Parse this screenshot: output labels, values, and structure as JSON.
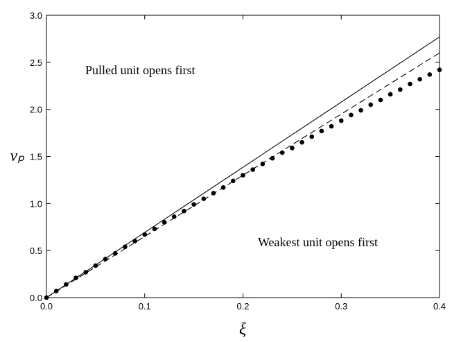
{
  "chart_data": {
    "type": "line",
    "xlabel": "ξ",
    "ylabel": "vₚ",
    "annotations": [
      "Pulled unit opens first",
      "Weakest unit opens first"
    ],
    "xlim": [
      0,
      0.4
    ],
    "xticks": [
      {
        "value": 0,
        "label": "0.0"
      },
      0.1,
      0.2,
      0.3,
      0.4
    ],
    "ylim": [
      0,
      3
    ],
    "yticks": [
      {
        "value": 0,
        "label": "0.0"
      },
      0.5,
      {
        "value": 1,
        "label": "1.0"
      },
      1.5,
      {
        "value": 2,
        "label": "2.0"
      },
      2.5,
      {
        "value": 3,
        "label": "3.0"
      }
    ],
    "series": [
      {
        "style": "solid",
        "color": "#000000",
        "x": [
          0,
          0.4
        ],
        "values": [
          0,
          2.77
        ]
      },
      {
        "style": "dashed",
        "color": "#000000",
        "x": [
          0,
          0.4
        ],
        "values": [
          0,
          2.6
        ]
      },
      {
        "style": "dots",
        "color": "#000000",
        "x": [
          0,
          0.01,
          0.02,
          0.03,
          0.04,
          0.05,
          0.06,
          0.07,
          0.08,
          0.09,
          0.1,
          0.11,
          0.12,
          0.13,
          0.14,
          0.15,
          0.16,
          0.17,
          0.18,
          0.19,
          0.2,
          0.21,
          0.22,
          0.23,
          0.24,
          0.25,
          0.26,
          0.27,
          0.28,
          0.29,
          0.3,
          0.31,
          0.32,
          0.33,
          0.34,
          0.35,
          0.36,
          0.37,
          0.38,
          0.39,
          0.4
        ],
        "values": [
          0,
          0.07,
          0.14,
          0.21,
          0.27,
          0.34,
          0.41,
          0.47,
          0.54,
          0.6,
          0.67,
          0.73,
          0.8,
          0.86,
          0.92,
          0.99,
          1.05,
          1.11,
          1.17,
          1.24,
          1.3,
          1.36,
          1.42,
          1.48,
          1.54,
          1.59,
          1.65,
          1.71,
          1.77,
          1.82,
          1.88,
          1.94,
          1.99,
          2.05,
          2.1,
          2.16,
          2.21,
          2.27,
          2.32,
          2.37,
          2.42
        ]
      }
    ]
  }
}
